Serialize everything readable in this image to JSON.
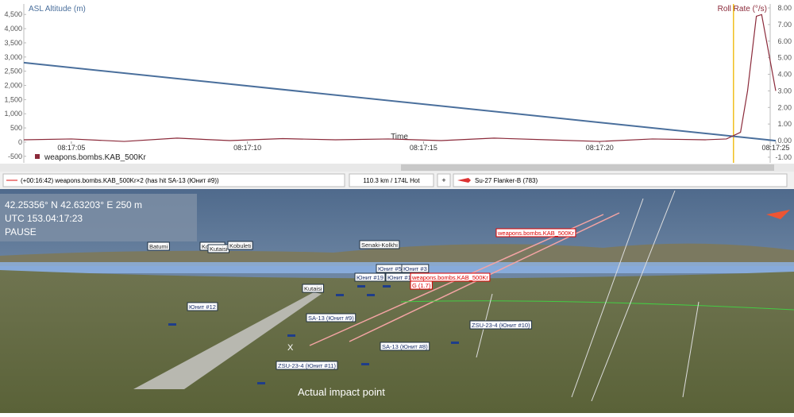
{
  "chart_data": {
    "type": "line",
    "x_label": "Time",
    "legend_label": "weapons.bombs.KAB_500Kr",
    "legend_color": "#8b2a3a",
    "xlim": [
      3.65,
      25
    ],
    "xticks": [
      {
        "value": 5,
        "label": "08:17:05"
      },
      {
        "value": 10,
        "label": "08:17:10"
      },
      {
        "value": 15,
        "label": "08:17:15"
      },
      {
        "value": 20,
        "label": "08:17:20"
      },
      {
        "value": 25,
        "label": "08:17:25"
      }
    ],
    "ylim": [
      -730,
      4870
    ],
    "yticks": [
      {
        "value": -500,
        "label": "-500"
      },
      0,
      500,
      {
        "value": 1000,
        "label": "1,000"
      },
      {
        "value": 1500,
        "label": "1,500"
      },
      {
        "value": 2000,
        "label": "2,000"
      },
      {
        "value": 2500,
        "label": "2,500"
      },
      {
        "value": 3000,
        "label": "3,000"
      },
      {
        "value": 3500,
        "label": "3,500"
      },
      {
        "value": 4000,
        "label": "4,000"
      },
      {
        "value": 4500,
        "label": "4,500"
      }
    ],
    "y2lim": [
      -1.34,
      8.24
    ],
    "y2ticks": [
      {
        "value": -1,
        "label": "-1.00"
      },
      {
        "value": 0,
        "label": "0.00"
      },
      {
        "value": 1,
        "label": "1.00"
      },
      {
        "value": 2,
        "label": "2.00"
      },
      {
        "value": 3,
        "label": "3.00"
      },
      {
        "value": 4,
        "label": "4.00"
      },
      {
        "value": 5,
        "label": "5.00"
      },
      {
        "value": 6,
        "label": "6.00"
      },
      {
        "value": 7,
        "label": "7.00"
      },
      {
        "value": 8,
        "label": "8.00"
      }
    ],
    "cursor_x": 23.8,
    "series": [
      {
        "name": "ASL Altitude (m)",
        "color": "#4a6f9c",
        "x": [
          3.65,
          25
        ],
        "values": [
          2800,
          50
        ]
      },
      {
        "name": "Roll Rate (°/s)",
        "color": "#8b2a3a",
        "axis": "y2",
        "x": [
          3.65,
          5,
          6.5,
          8,
          9.5,
          11,
          12.5,
          14,
          15.5,
          17,
          18.5,
          20,
          21.5,
          23,
          23.6,
          24,
          24.2,
          24.45,
          24.6,
          25
        ],
        "values": [
          0.05,
          0.1,
          -0.05,
          0.15,
          0.0,
          0.12,
          0.05,
          0.1,
          0.0,
          0.15,
          0.05,
          -0.05,
          0.1,
          0.05,
          0.1,
          0.5,
          3,
          7.5,
          7.6,
          3
        ]
      }
    ]
  },
  "toolbar": {
    "event": "(+00:16:42) weapons.bombs.KAB_500Kr×2 (has hit SA-13 (Юнит #9))",
    "distance": "110.3 km / 174L Hot",
    "plus": "+",
    "aircraft": "Su-27 Flanker-B (783)"
  },
  "scene": {
    "coords": "42.25356° N  42.63203° E  250 m",
    "utc": "UTC 153.04:17:23",
    "state": "PAUSE",
    "labels": [
      "Batumi",
      "Kobuleti",
      "Kutaisi",
      "Kobuleti",
      "Senaki-Kolkhi",
      "Kutaisi",
      "Юнит #5",
      "Юнит #3",
      "Юнит #19",
      "Юнит #18",
      "weapons.bombs.KAB_500Kr",
      "weapons.bombs.KAB_500Kr",
      "G (1.7)",
      "SA-13 (Юнит #9)",
      "ZSU-23-4 (Юнит #10)",
      "SA-13 (Юнит #8)",
      "ZSU-23-4 (Юнит #11)",
      "Юнит #12"
    ],
    "marker": "X",
    "annotation": "Actual impact point"
  }
}
